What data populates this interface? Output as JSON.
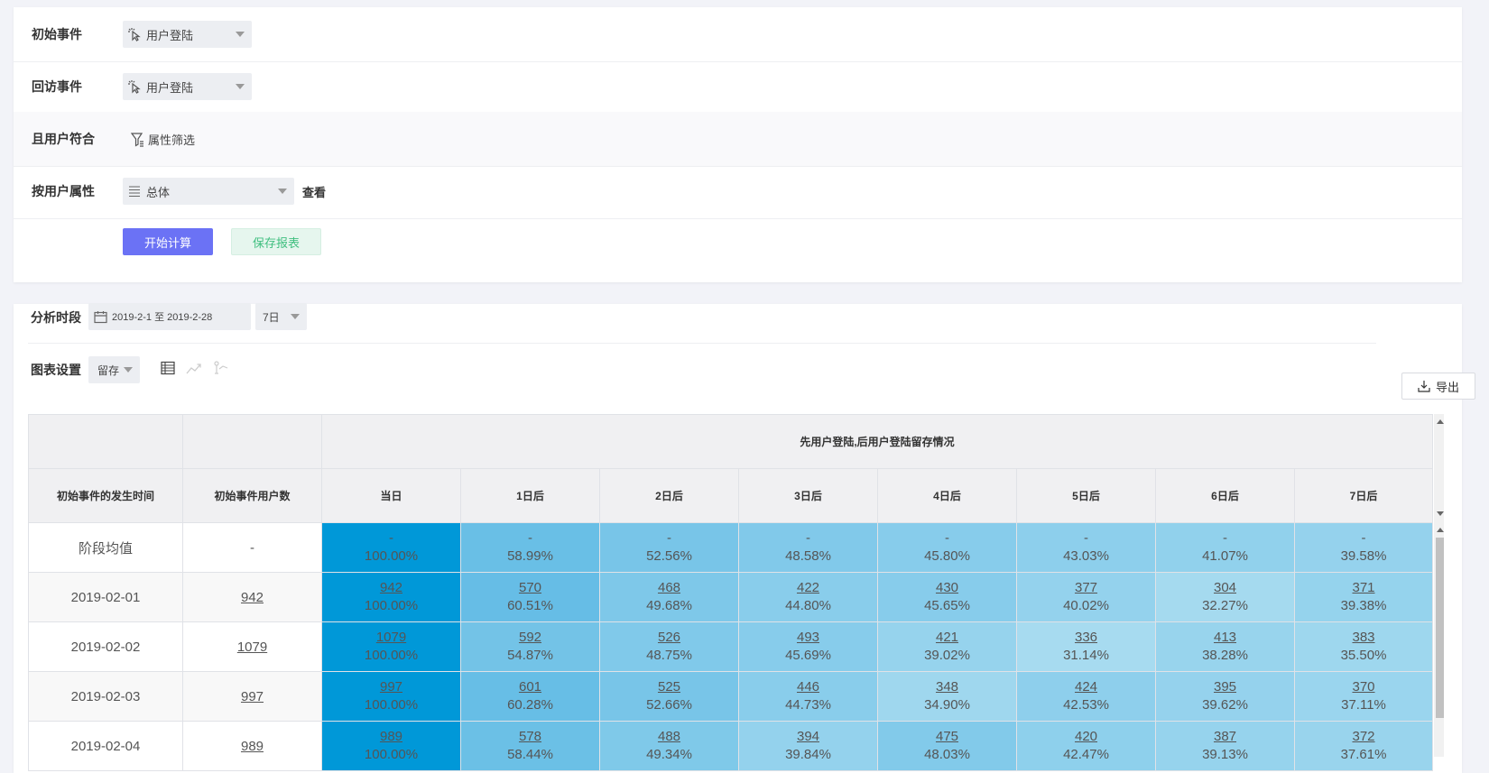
{
  "config": {
    "initial_event": {
      "label": "初始事件",
      "value": "用户登陆"
    },
    "return_event": {
      "label": "回访事件",
      "value": "用户登陆"
    },
    "user_filter": {
      "label": "且用户符合",
      "button": "属性筛选"
    },
    "group_by": {
      "label": "按用户属性",
      "value": "总体",
      "view": "查看"
    },
    "start_button": "开始计算",
    "save_button": "保存报表"
  },
  "analysis": {
    "period_label": "分析时段",
    "date_range": "2019-2-1 至 2019-2-28",
    "window": "7日",
    "chart_settings_label": "图表设置",
    "chart_type": "留存",
    "export": "导出"
  },
  "table": {
    "super_header": "先用户登陆,后用户登陆留存情况",
    "col_time": "初始事件的发生时间",
    "col_users": "初始事件用户数",
    "days": [
      "当日",
      "1日后",
      "2日后",
      "3日后",
      "4日后",
      "5日后",
      "6日后",
      "7日后"
    ],
    "rows": [
      {
        "date": "阶段均值",
        "users": "-",
        "cells": [
          {
            "v": "-",
            "p": "100.00%"
          },
          {
            "v": "-",
            "p": "58.99%"
          },
          {
            "v": "-",
            "p": "52.56%"
          },
          {
            "v": "-",
            "p": "48.58%"
          },
          {
            "v": "-",
            "p": "45.80%"
          },
          {
            "v": "-",
            "p": "43.03%"
          },
          {
            "v": "-",
            "p": "41.07%"
          },
          {
            "v": "-",
            "p": "39.58%"
          }
        ]
      },
      {
        "date": "2019-02-01",
        "users": "942",
        "cells": [
          {
            "v": "942",
            "p": "100.00%"
          },
          {
            "v": "570",
            "p": "60.51%"
          },
          {
            "v": "468",
            "p": "49.68%"
          },
          {
            "v": "422",
            "p": "44.80%"
          },
          {
            "v": "430",
            "p": "45.65%"
          },
          {
            "v": "377",
            "p": "40.02%"
          },
          {
            "v": "304",
            "p": "32.27%"
          },
          {
            "v": "371",
            "p": "39.38%"
          }
        ]
      },
      {
        "date": "2019-02-02",
        "users": "1079",
        "cells": [
          {
            "v": "1079",
            "p": "100.00%"
          },
          {
            "v": "592",
            "p": "54.87%"
          },
          {
            "v": "526",
            "p": "48.75%"
          },
          {
            "v": "493",
            "p": "45.69%"
          },
          {
            "v": "421",
            "p": "39.02%"
          },
          {
            "v": "336",
            "p": "31.14%"
          },
          {
            "v": "413",
            "p": "38.28%"
          },
          {
            "v": "383",
            "p": "35.50%"
          }
        ]
      },
      {
        "date": "2019-02-03",
        "users": "997",
        "cells": [
          {
            "v": "997",
            "p": "100.00%"
          },
          {
            "v": "601",
            "p": "60.28%"
          },
          {
            "v": "525",
            "p": "52.66%"
          },
          {
            "v": "446",
            "p": "44.73%"
          },
          {
            "v": "348",
            "p": "34.90%"
          },
          {
            "v": "424",
            "p": "42.53%"
          },
          {
            "v": "395",
            "p": "39.62%"
          },
          {
            "v": "370",
            "p": "37.11%"
          }
        ]
      },
      {
        "date": "2019-02-04",
        "users": "989",
        "cells": [
          {
            "v": "989",
            "p": "100.00%"
          },
          {
            "v": "578",
            "p": "58.44%"
          },
          {
            "v": "488",
            "p": "49.34%"
          },
          {
            "v": "394",
            "p": "39.84%"
          },
          {
            "v": "475",
            "p": "48.03%"
          },
          {
            "v": "420",
            "p": "42.47%"
          },
          {
            "v": "387",
            "p": "39.13%"
          },
          {
            "v": "372",
            "p": "37.61%"
          }
        ]
      }
    ]
  },
  "colors": {
    "primary": "#6b72f5",
    "heat_max": "#0098d8",
    "save_text": "#3fbf7f"
  }
}
